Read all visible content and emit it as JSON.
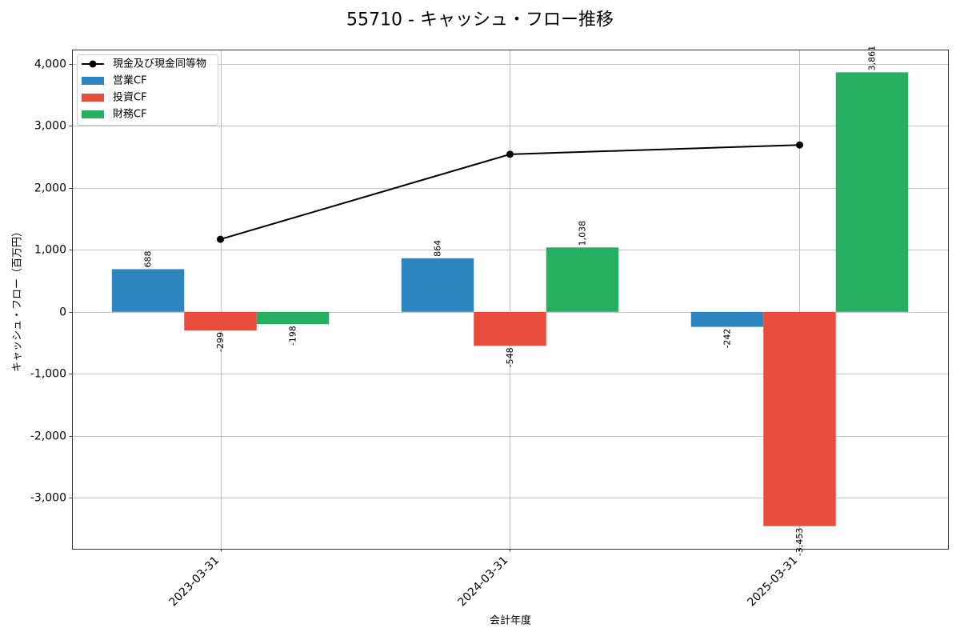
{
  "chart_data": {
    "type": "bar",
    "title": "55710 - キャッシュ・フロー推移",
    "xlabel": "会計年度",
    "ylabel": "キャッシュ・フロー（百万円）",
    "categories": [
      "2023-03-31",
      "2024-03-31",
      "2025-03-31"
    ],
    "series": [
      {
        "name": "現金及び現金同等物",
        "type": "line",
        "color": "#000000",
        "values": [
          1170,
          2540,
          2690
        ]
      },
      {
        "name": "営業CF",
        "type": "bar",
        "color": "#2e86c1",
        "values": [
          688,
          864,
          -242
        ],
        "labels": [
          "688",
          "864",
          "-242"
        ]
      },
      {
        "name": "投資CF",
        "type": "bar",
        "color": "#e74c3c",
        "values": [
          -299,
          -548,
          -3453
        ],
        "labels": [
          "-299",
          "-548",
          "-3,453"
        ]
      },
      {
        "name": "財務CF",
        "type": "bar",
        "color": "#27ae60",
        "values": [
          -198,
          1038,
          3861
        ],
        "labels": [
          "-198",
          "1,038",
          "3,861"
        ]
      }
    ],
    "ylim": [
      -3819,
      4227
    ],
    "yticks": [
      -3000,
      -2000,
      -1000,
      0,
      1000,
      2000,
      3000,
      4000
    ],
    "ytick_labels": [
      "-3,000",
      "-2,000",
      "-1,000",
      "0",
      "1,000",
      "2,000",
      "3,000",
      "4,000"
    ],
    "grid": true,
    "legend": "upper left"
  }
}
